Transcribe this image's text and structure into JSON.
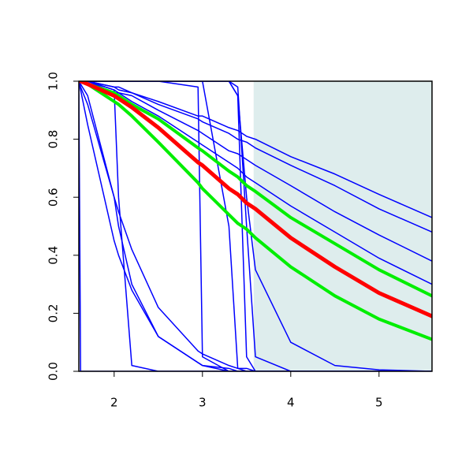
{
  "chart_data": {
    "type": "line",
    "x": [
      1.6,
      1.62,
      1.7,
      2.0,
      2.05,
      2.2,
      2.5,
      2.95,
      3.0,
      3.3,
      3.4,
      3.5,
      3.6,
      4.0,
      4.5,
      5.0,
      5.6
    ],
    "xlim": [
      1.6,
      5.6
    ],
    "ylim": [
      0,
      1
    ],
    "xticks": [
      2,
      3,
      4,
      5
    ],
    "yticks": [
      {
        "value": 0,
        "label": "0.0"
      },
      0.2,
      0.4,
      0.6,
      0.8,
      {
        "value": 1,
        "label": "1.0"
      }
    ],
    "shaded_xlim": [
      3.58,
      5.6
    ],
    "shaded_color": "#deeded",
    "series": [
      {
        "color": "#0000ff",
        "line_width": 1.5,
        "values": [
          1,
          1,
          1.0,
          0.98,
          0.98,
          0.96,
          0.93,
          0.88,
          0.88,
          0.84,
          0.83,
          0.81,
          0.8,
          0.74,
          0.68,
          0.61,
          0.53
        ]
      },
      {
        "color": "#0000ff",
        "line_width": 1.5,
        "values": [
          1,
          1,
          1.0,
          0.98,
          0.97,
          0.96,
          0.92,
          0.87,
          0.86,
          0.82,
          0.8,
          0.79,
          0.77,
          0.71,
          0.64,
          0.56,
          0.48
        ]
      },
      {
        "color": "#0000ff",
        "line_width": 1.5,
        "values": [
          1,
          1,
          1.0,
          0.97,
          0.96,
          0.95,
          0.9,
          0.83,
          0.82,
          0.76,
          0.75,
          0.73,
          0.71,
          0.64,
          0.55,
          0.47,
          0.38
        ]
      },
      {
        "color": "#0000ff",
        "line_width": 1.5,
        "values": [
          1,
          1,
          1.0,
          0.96,
          0.96,
          0.93,
          0.88,
          0.79,
          0.78,
          0.72,
          0.7,
          0.67,
          0.65,
          0.57,
          0.48,
          0.39,
          0.3
        ]
      },
      {
        "color": "#0000ff",
        "line_width": 1.5,
        "values": [
          1,
          0,
          0,
          0,
          0,
          0,
          0,
          0,
          0,
          0,
          0,
          0,
          0,
          0,
          0,
          0,
          0
        ]
      },
      {
        "color": "#0000ff",
        "line_width": 1.5,
        "values": [
          1,
          1,
          1,
          0.97,
          0.6,
          0.02,
          0,
          0,
          0,
          0,
          0,
          0,
          0,
          0,
          0,
          0,
          0
        ]
      },
      {
        "color": "#0000ff",
        "line_width": 1.5,
        "values": [
          1,
          0.97,
          0.85,
          0.45,
          0.4,
          0.28,
          0.12,
          0.03,
          0.02,
          0.01,
          0,
          0,
          0,
          0,
          0,
          0,
          0
        ]
      },
      {
        "color": "#0000ff",
        "line_width": 1.5,
        "values": [
          1,
          0.98,
          0.92,
          0.6,
          0.55,
          0.42,
          0.22,
          0.07,
          0.06,
          0.02,
          0.01,
          0.01,
          0,
          0,
          0,
          0,
          0
        ]
      },
      {
        "color": "#0000ff",
        "line_width": 1.5,
        "values": [
          1,
          0.99,
          0.95,
          0.6,
          0.5,
          0.3,
          0.12,
          0.03,
          0.02,
          0,
          0,
          0,
          0,
          0,
          0,
          0,
          0
        ]
      },
      {
        "color": "#0000ff",
        "line_width": 1.5,
        "values": [
          1,
          1,
          1,
          1,
          1,
          1,
          1,
          0.98,
          0.05,
          0,
          0,
          0,
          0,
          0,
          0,
          0,
          0
        ]
      },
      {
        "color": "#0000ff",
        "line_width": 1.5,
        "values": [
          1,
          1,
          1,
          1,
          1,
          1,
          1,
          1,
          1,
          0.5,
          0.01,
          0,
          0,
          0,
          0,
          0,
          0
        ]
      },
      {
        "color": "#0000ff",
        "line_width": 1.5,
        "values": [
          1,
          1,
          1,
          1,
          1,
          1,
          1,
          1,
          1,
          1,
          0.95,
          0.05,
          0,
          0,
          0,
          0,
          0
        ]
      },
      {
        "color": "#0000ff",
        "line_width": 1.5,
        "values": [
          1,
          1,
          1,
          1,
          1,
          1,
          1,
          1,
          1,
          1,
          0.98,
          0.5,
          0.05,
          0,
          0,
          0,
          0
        ]
      },
      {
        "color": "#0000ff",
        "line_width": 1.5,
        "values": [
          1,
          1,
          1,
          1,
          1,
          1,
          1,
          1,
          1,
          1,
          0.95,
          0.6,
          0.35,
          0.1,
          0.02,
          0.005,
          0
        ]
      },
      {
        "color": "#00ee00",
        "line_width": 4,
        "values": [
          1,
          1,
          0.99,
          0.96,
          0.95,
          0.92,
          0.87,
          0.77,
          0.76,
          0.69,
          0.67,
          0.64,
          0.62,
          0.53,
          0.44,
          0.35,
          0.26
        ]
      },
      {
        "color": "#00ee00",
        "line_width": 4,
        "values": [
          1,
          1,
          0.99,
          0.93,
          0.92,
          0.88,
          0.79,
          0.65,
          0.63,
          0.54,
          0.51,
          0.49,
          0.46,
          0.36,
          0.26,
          0.18,
          0.11
        ]
      },
      {
        "color": "#ff0000",
        "line_width": 5,
        "values": [
          1,
          1,
          0.99,
          0.95,
          0.94,
          0.91,
          0.84,
          0.72,
          0.71,
          0.63,
          0.61,
          0.58,
          0.56,
          0.46,
          0.36,
          0.27,
          0.19
        ]
      }
    ]
  }
}
